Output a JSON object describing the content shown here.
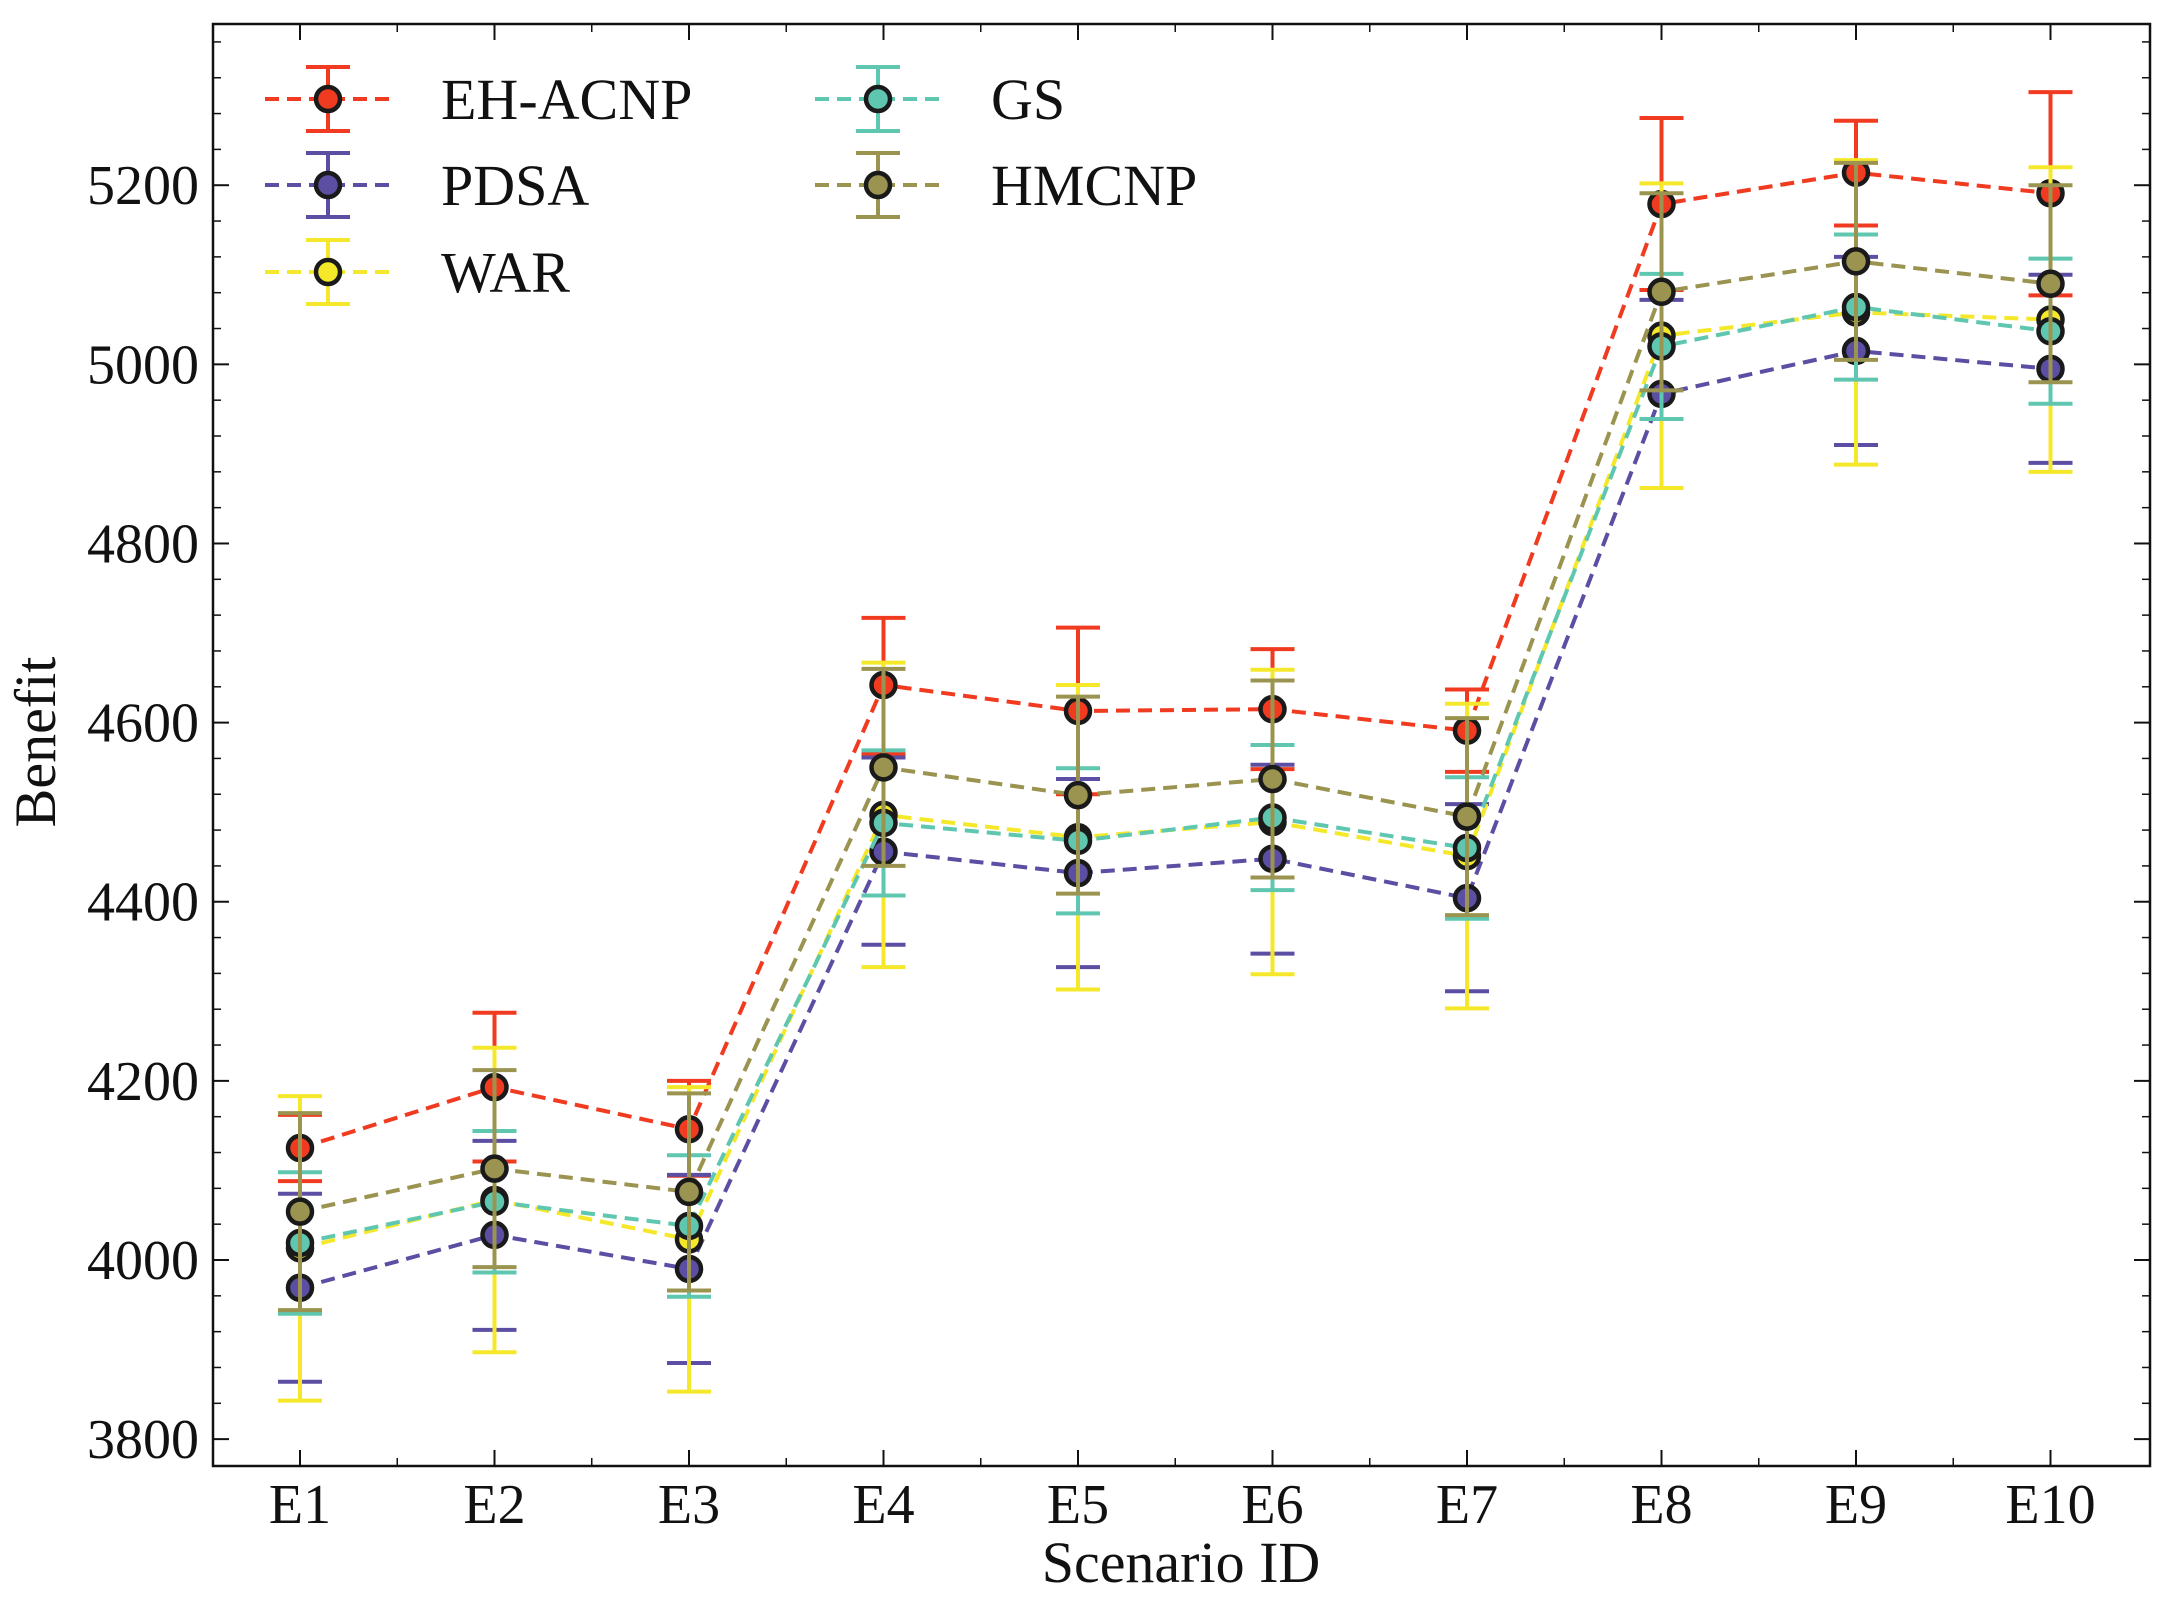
{
  "chart_data": {
    "type": "line",
    "title": "",
    "xlabel": "Scenario ID",
    "ylabel": "Benefit",
    "categories": [
      "E1",
      "E2",
      "E3",
      "E4",
      "E5",
      "E6",
      "E7",
      "E8",
      "E9",
      "E10"
    ],
    "ylim": [
      3770,
      5380
    ],
    "yticks": [
      3800,
      4000,
      4200,
      4400,
      4600,
      4800,
      5000,
      5200
    ],
    "ytick_labels": [
      "3800",
      "4000",
      "4200",
      "4400",
      "4600",
      "4800",
      "5000",
      "5200"
    ],
    "grid": false,
    "legend_position": "top-left",
    "series": [
      {
        "name": "EH-ACNP",
        "color": "#f03b20",
        "values": [
          4125,
          4193,
          4146,
          4642,
          4613,
          4615,
          4591,
          5179,
          5214,
          5191
        ],
        "err_low": [
          4088,
          4110,
          4094,
          4565,
          4520,
          4548,
          4545,
          5083,
          5155,
          5077
        ],
        "err_high": [
          4162,
          4276,
          4200,
          4717,
          4706,
          4682,
          4637,
          5275,
          5272,
          5304
        ]
      },
      {
        "name": "PDSA",
        "color": "#5b4ea3",
        "values": [
          3969,
          4028,
          3990,
          4456,
          4432,
          4448,
          4404,
          4967,
          5015,
          4995
        ],
        "err_low": [
          3864,
          3922,
          3885,
          4352,
          4327,
          4342,
          4300,
          4862,
          4910,
          4890
        ],
        "err_high": [
          4074,
          4133,
          4095,
          4561,
          4537,
          4553,
          4509,
          5072,
          5120,
          5100
        ]
      },
      {
        "name": "WAR",
        "color": "#f5e82a",
        "values": [
          4013,
          4067,
          4023,
          4497,
          4472,
          4489,
          4451,
          5032,
          5058,
          5050
        ],
        "err_low": [
          3843,
          3897,
          3853,
          4327,
          4302,
          4319,
          4281,
          4862,
          4888,
          4880
        ],
        "err_high": [
          4183,
          4237,
          4193,
          4667,
          4642,
          4659,
          4621,
          5202,
          5228,
          5220
        ]
      },
      {
        "name": "GS",
        "color": "#5fc7b0",
        "values": [
          4019,
          4065,
          4038,
          4488,
          4468,
          4494,
          4460,
          5020,
          5064,
          5037
        ],
        "err_low": [
          3940,
          3986,
          3959,
          4407,
          4387,
          4413,
          4381,
          4939,
          4983,
          4956
        ],
        "err_high": [
          4098,
          4144,
          4117,
          4569,
          4549,
          4575,
          4539,
          5101,
          5145,
          5118
        ]
      },
      {
        "name": "HMCNP",
        "color": "#9b9450",
        "values": [
          4054,
          4102,
          4076,
          4550,
          4519,
          4537,
          4495,
          5081,
          5115,
          5090
        ],
        "err_low": [
          3944,
          3992,
          3966,
          4440,
          4409,
          4427,
          4385,
          4971,
          5005,
          4980
        ],
        "err_high": [
          4164,
          4212,
          4186,
          4660,
          4629,
          4647,
          4605,
          5191,
          5225,
          5200
        ]
      }
    ]
  }
}
